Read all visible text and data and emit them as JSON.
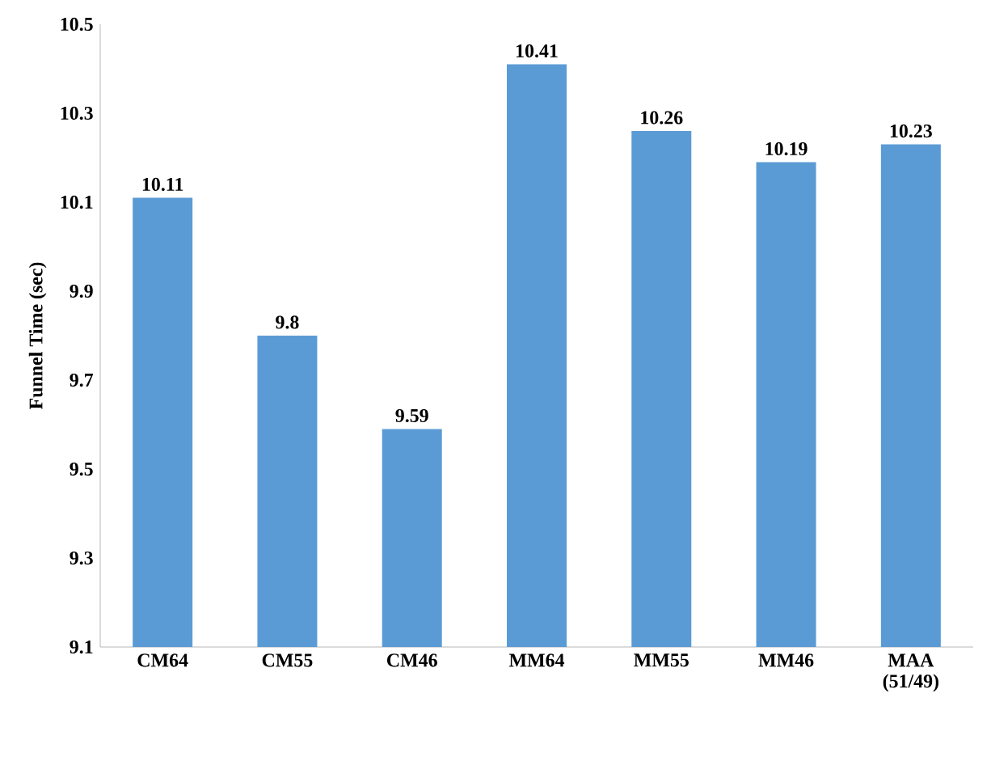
{
  "chart_data": {
    "type": "bar",
    "ylabel": "Funnel Time (sec)",
    "categories": [
      "CM64",
      "CM55",
      "CM46",
      "MM64",
      "MM55",
      "MM46",
      "MAA (51/49)"
    ],
    "values": [
      10.11,
      9.8,
      9.59,
      10.41,
      10.26,
      10.19,
      10.23
    ],
    "color": "#5b9bd5",
    "ylim": [
      9.1,
      10.5
    ],
    "yticks": [
      9.1,
      9.3,
      9.5,
      9.7,
      9.9,
      10.1,
      10.3,
      10.5
    ],
    "data_labels": true
  }
}
